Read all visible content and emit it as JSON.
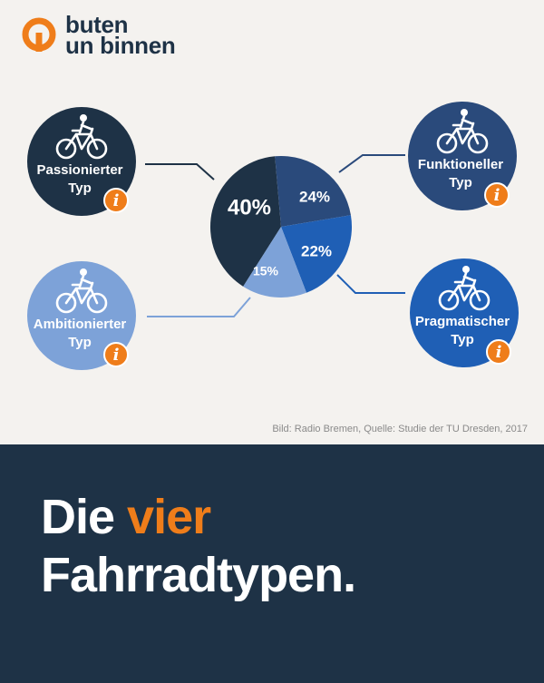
{
  "brand": {
    "line1": "buten",
    "line2": "un binnen",
    "color": "#ef7d1a"
  },
  "source_note": "Bild: Radio Bremen, Quelle:  Studie der TU Dresden, 2017",
  "headline": {
    "part1": "Die ",
    "accent": "vier",
    "line2": "Fahrradtypen."
  },
  "colors": {
    "accent": "#ef7d1a",
    "dark": "#1e3246",
    "background": "#f4f2ef"
  },
  "chart_data": {
    "type": "pie",
    "title": "",
    "slices": [
      {
        "label_top": "Passionierter",
        "label_bottom": "Typ",
        "value": 40,
        "value_label": "40%",
        "color": "#1e3246",
        "icon": "cyclist-icon"
      },
      {
        "label_top": "Funktioneller",
        "label_bottom": "Typ",
        "value": 24,
        "value_label": "24%",
        "color": "#2a4a7b",
        "icon": "bike-with-basket-and-child-seat-icon"
      },
      {
        "label_top": "Pragmatischer",
        "label_bottom": "Typ",
        "value": 22,
        "value_label": "22%",
        "color": "#1f5fb5",
        "icon": "upright-cyclist-icon"
      },
      {
        "label_top": "Ambitionierter",
        "label_bottom": "Typ",
        "value": 15,
        "value_label": "15%",
        "color": "#7da2d8",
        "icon": "racing-cyclist-icon"
      }
    ],
    "info_icon": "info-icon"
  }
}
